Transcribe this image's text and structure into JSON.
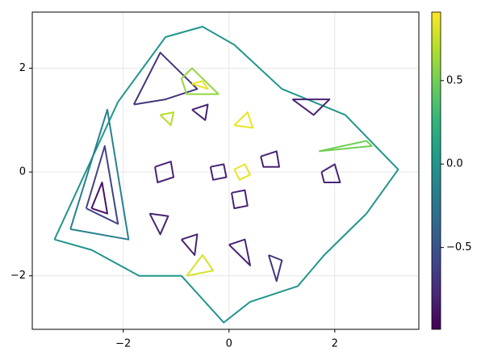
{
  "chart_data": {
    "type": "contour",
    "colormap": "viridis",
    "clim": [
      -0.99,
      0.91
    ],
    "xlim": [
      -3.72,
      3.59
    ],
    "ylim": [
      -3.03,
      3.08
    ],
    "xticks": [
      {
        "value": -2,
        "label": "−2"
      },
      0,
      2
    ],
    "yticks": [
      {
        "value": -2,
        "label": "−2"
      },
      0,
      2
    ],
    "cticks": [
      {
        "value": -0.5,
        "label": "−0.5"
      },
      {
        "value": 0,
        "label": "0.0"
      },
      {
        "value": 0.5,
        "label": "0.5"
      }
    ],
    "grid": true,
    "series": [
      {
        "level": 0.0,
        "x": [
          -3.3,
          -2.1,
          -1.2,
          -0.5,
          0.1,
          1.0,
          2.2,
          3.2,
          2.6,
          1.8,
          1.3,
          0.4,
          -0.1,
          -0.9,
          -1.7,
          -2.6,
          -3.3
        ],
        "y": [
          -1.3,
          1.35,
          2.6,
          2.8,
          2.45,
          1.6,
          1.1,
          0.05,
          -0.8,
          -1.6,
          -2.2,
          -2.5,
          -2.9,
          -2.0,
          -2.0,
          -1.5,
          -1.3
        ]
      },
      {
        "level": -0.15,
        "x": [
          -3.0,
          -2.3,
          -1.9,
          -3.0
        ],
        "y": [
          -1.1,
          1.2,
          -1.3,
          -1.1
        ]
      },
      {
        "level": -0.6,
        "x": [
          -2.7,
          -2.35,
          -2.1,
          -2.7
        ],
        "y": [
          -0.7,
          0.5,
          -1.0,
          -0.7
        ]
      },
      {
        "level": -0.9,
        "x": [
          -2.6,
          -2.4,
          -2.3,
          -2.6
        ],
        "y": [
          -0.7,
          -0.2,
          -0.8,
          -0.7
        ]
      },
      {
        "level": -0.7,
        "x": [
          -1.8,
          -1.3,
          -0.6,
          -1.2,
          -1.8
        ],
        "y": [
          1.3,
          2.3,
          1.6,
          1.4,
          1.3
        ]
      },
      {
        "level": 0.6,
        "x": [
          -0.9,
          -0.7,
          -0.2,
          -0.8,
          -0.9
        ],
        "y": [
          1.8,
          2.0,
          1.5,
          1.5,
          1.8
        ]
      },
      {
        "level": 0.85,
        "x": [
          -0.7,
          -0.5,
          -0.4,
          -0.7
        ],
        "y": [
          1.7,
          1.75,
          1.6,
          1.7
        ]
      },
      {
        "level": -0.8,
        "x": [
          1.2,
          1.6,
          1.9,
          1.2
        ],
        "y": [
          1.4,
          1.1,
          1.4,
          1.4
        ]
      },
      {
        "level": 0.5,
        "x": [
          1.7,
          2.6,
          2.7,
          1.7
        ],
        "y": [
          0.4,
          0.6,
          0.5,
          0.4
        ]
      },
      {
        "level": -0.8,
        "x": [
          -1.4,
          -1.1,
          -1.05,
          -1.35,
          -1.4
        ],
        "y": [
          0.1,
          0.2,
          -0.1,
          -0.2,
          0.1
        ]
      },
      {
        "level": -0.8,
        "x": [
          -0.35,
          -0.1,
          -0.05,
          -0.3,
          -0.35
        ],
        "y": [
          0.1,
          0.15,
          -0.1,
          -0.15,
          0.1
        ]
      },
      {
        "level": 0.85,
        "x": [
          0.1,
          0.3,
          0.4,
          0.2,
          0.1
        ],
        "y": [
          0.05,
          0.15,
          -0.05,
          -0.15,
          0.05
        ]
      },
      {
        "level": -0.8,
        "x": [
          0.05,
          0.3,
          0.35,
          0.1,
          0.05
        ],
        "y": [
          -0.4,
          -0.35,
          -0.65,
          -0.7,
          -0.4
        ]
      },
      {
        "level": -0.8,
        "x": [
          -1.5,
          -1.15,
          -1.3,
          -1.5
        ],
        "y": [
          -0.8,
          -0.85,
          -1.2,
          -0.8
        ]
      },
      {
        "level": -0.8,
        "x": [
          -0.9,
          -0.6,
          -0.65,
          -0.9
        ],
        "y": [
          -1.3,
          -1.2,
          -1.6,
          -1.3
        ]
      },
      {
        "level": 0.8,
        "x": [
          -0.8,
          -0.5,
          -0.3,
          -0.8
        ],
        "y": [
          -2.0,
          -1.6,
          -1.9,
          -2.0
        ]
      },
      {
        "level": -0.8,
        "x": [
          0.0,
          0.3,
          0.4,
          0.0
        ],
        "y": [
          -1.4,
          -1.3,
          -1.8,
          -1.4
        ]
      },
      {
        "level": -0.8,
        "x": [
          1.75,
          2.0,
          2.1,
          1.8,
          1.75
        ],
        "y": [
          0.0,
          0.15,
          -0.2,
          -0.2,
          0.0
        ]
      },
      {
        "level": 0.7,
        "x": [
          -1.3,
          -1.05,
          -1.1,
          -1.3
        ],
        "y": [
          1.1,
          1.15,
          0.9,
          1.1
        ]
      },
      {
        "level": -0.8,
        "x": [
          -0.7,
          -0.4,
          -0.45,
          -0.7
        ],
        "y": [
          1.2,
          1.3,
          1.0,
          1.2
        ]
      },
      {
        "level": 0.85,
        "x": [
          0.1,
          0.35,
          0.45,
          0.1
        ],
        "y": [
          0.9,
          1.15,
          0.85,
          0.9
        ]
      },
      {
        "level": -0.8,
        "x": [
          0.6,
          0.9,
          0.95,
          0.65,
          0.6
        ],
        "y": [
          0.3,
          0.4,
          0.1,
          0.1,
          0.3
        ]
      },
      {
        "level": -0.7,
        "x": [
          0.75,
          1.0,
          0.9,
          0.75
        ],
        "y": [
          -1.6,
          -1.7,
          -2.1,
          -1.6
        ]
      }
    ]
  }
}
